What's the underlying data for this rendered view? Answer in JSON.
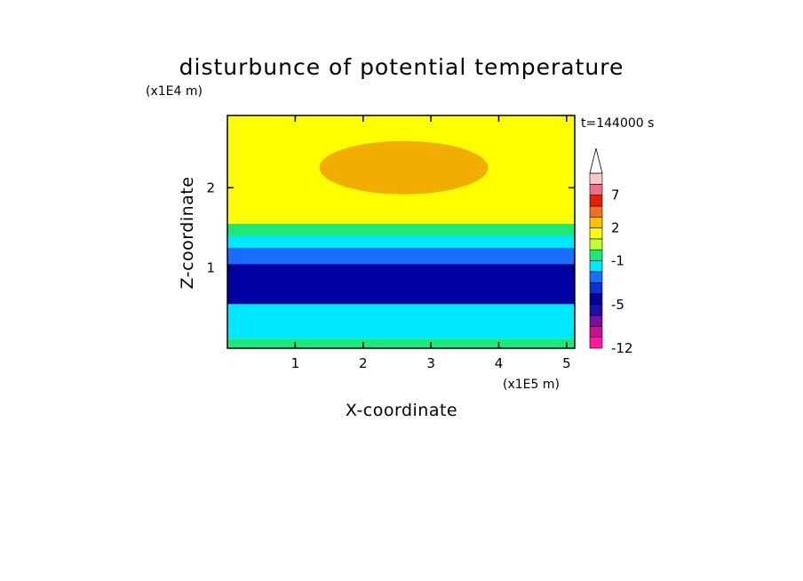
{
  "chart_data": {
    "type": "heatmap",
    "title": "disturbunce of potential temperature",
    "xlabel": "X-coordinate",
    "ylabel": "Z-coordinate",
    "x_unit": "(x1E5 m)",
    "y_unit": "(x1E4 m)",
    "time_label": "t=144000 s",
    "xlim": [
      0,
      5.12
    ],
    "ylim": [
      0,
      2.9
    ],
    "x_ticks": [
      "1",
      "2",
      "3",
      "4",
      "5"
    ],
    "y_ticks": [
      "1",
      "2"
    ],
    "x_tick_values": [
      1,
      2,
      3,
      4,
      5
    ],
    "y_tick_values": [
      1,
      2
    ],
    "colorbar": {
      "colors": [
        "#ff1aa0",
        "#c8108e",
        "#7b0fa6",
        "#1a0fa8",
        "#0000a0",
        "#0a32d8",
        "#1a6cff",
        "#00e8ff",
        "#20e878",
        "#c0ff30",
        "#ffff00",
        "#ffc000",
        "#f07020",
        "#e82000",
        "#f07088",
        "#f8c8c8"
      ],
      "tick_labels": [
        "-12",
        "-5",
        "-1",
        "2",
        "7"
      ],
      "tick_boundaries": [
        0,
        4,
        8,
        11,
        14
      ],
      "extend": "max"
    },
    "field_layers": [
      {
        "z_range": [
          0.0,
          0.12
        ],
        "value_class": "-1 to 2",
        "color": "#20e878"
      },
      {
        "z_range": [
          0.12,
          0.55
        ],
        "value_class": "-1 to -3",
        "color": "#00e8ff"
      },
      {
        "z_range": [
          0.55,
          1.05
        ],
        "value_class": "-5 to -7",
        "color": "#0000a0"
      },
      {
        "z_range": [
          1.05,
          1.25
        ],
        "value_class": "-3 to -5",
        "color": "#1a6cff"
      },
      {
        "z_range": [
          1.25,
          1.4
        ],
        "value_class": "-1 to 0",
        "color": "#00e8ff"
      },
      {
        "z_range": [
          1.4,
          1.55
        ],
        "value_class": "0 to 1",
        "color": "#20e878"
      },
      {
        "z_range": [
          1.55,
          2.9
        ],
        "value_class": "1 to 4",
        "color": "#ffff00"
      }
    ],
    "warm_core": {
      "x": 2.6,
      "z": 2.25,
      "value_class": "2 to 4",
      "color": "#f0a000"
    }
  }
}
